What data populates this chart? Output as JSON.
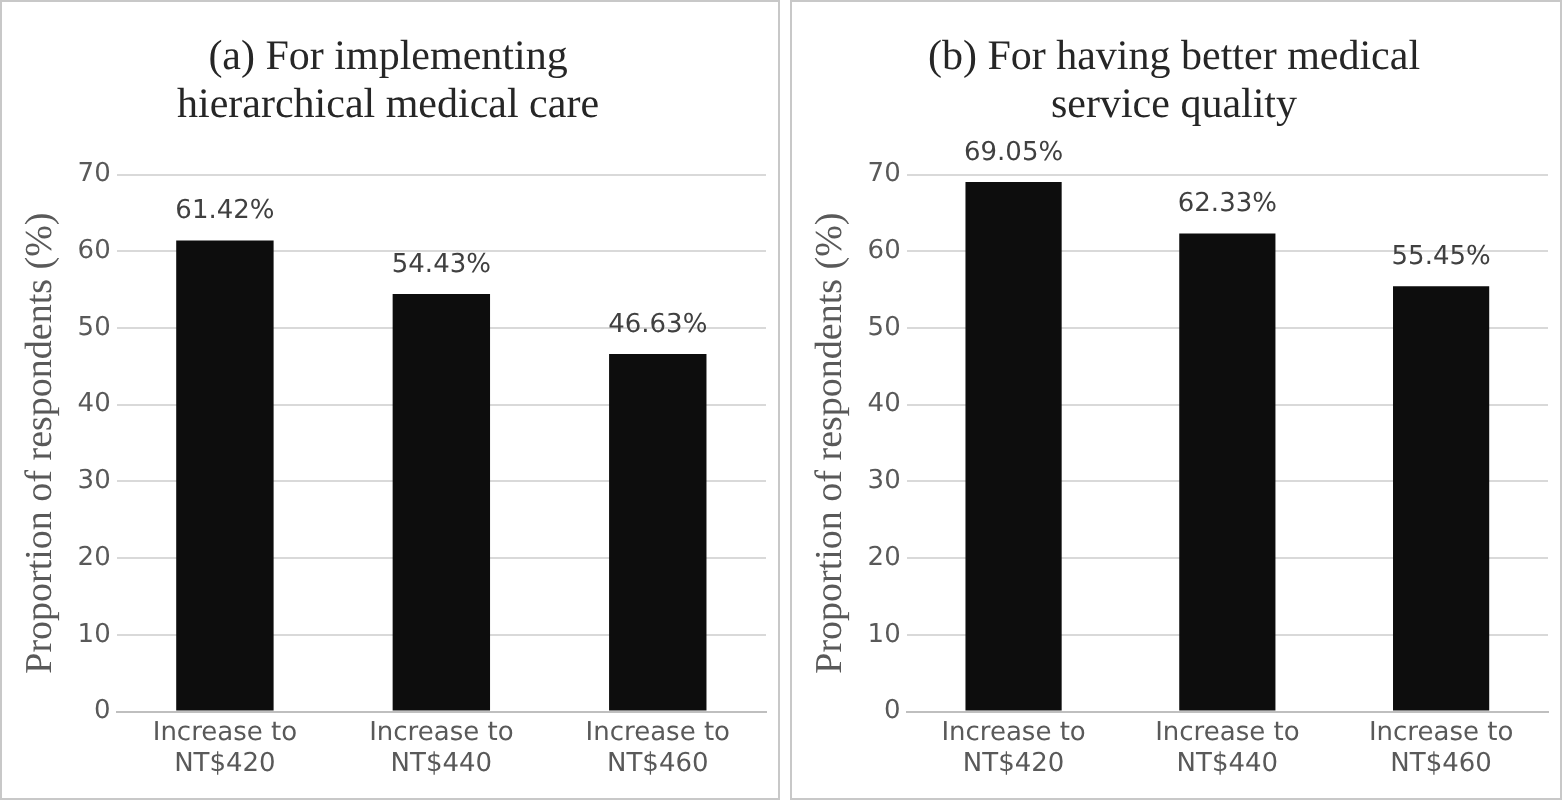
{
  "chart_data": [
    {
      "type": "bar",
      "title": "(a) For implementing hierarchical medical care",
      "ylabel": "Proportion of respondents (%)",
      "categories": [
        "Increase to NT$420",
        "Increase to NT$440",
        "Increase to NT$460"
      ],
      "values": [
        61.42,
        54.43,
        46.63
      ],
      "value_labels": [
        "61.42%",
        "54.43%",
        "46.63%"
      ],
      "color": "#0d0d0d",
      "ylim": [
        0,
        70
      ],
      "yticks": [
        0,
        10,
        20,
        30,
        40,
        50,
        60,
        70
      ],
      "grid": "y",
      "legend": false
    },
    {
      "type": "bar",
      "title": "(b) For having better medical service quality",
      "ylabel": "Proportion of respondents (%)",
      "categories": [
        "Increase to NT$420",
        "Increase to NT$440",
        "Increase to NT$460"
      ],
      "values": [
        69.05,
        62.33,
        55.45
      ],
      "value_labels": [
        "69.05%",
        "62.33%",
        "55.45%"
      ],
      "color": "#0d0d0d",
      "ylim": [
        0,
        70
      ],
      "yticks": [
        0,
        10,
        20,
        30,
        40,
        50,
        60,
        70
      ],
      "grid": "y",
      "legend": false
    }
  ]
}
